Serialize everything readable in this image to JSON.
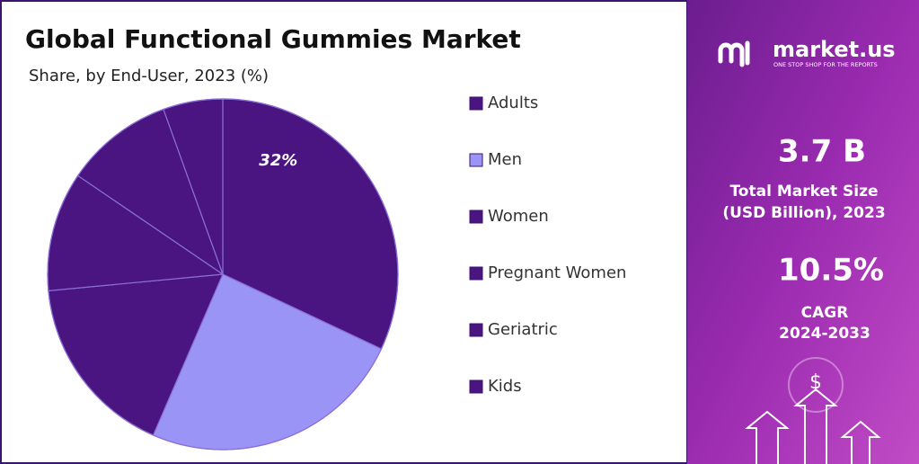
{
  "chart_data": {
    "type": "pie",
    "title": "Global Functional Gummies Market",
    "subtitle": "Share, by End-User, 2023 (%)",
    "categories": [
      "Adults",
      "Men",
      "Women",
      "Pregnant Women",
      "Geriatric",
      "Kids"
    ],
    "values": [
      32,
      24.5,
      17,
      11,
      10,
      5.5
    ],
    "value_labels": [
      "32%",
      null,
      null,
      null,
      null,
      null
    ],
    "colors": [
      "#4a1580",
      "#9b94f7",
      "#4a1580",
      "#4a1580",
      "#4a1580",
      "#4a1580"
    ]
  },
  "panel": {
    "brand": "market.us",
    "tagline": "ONE STOP SHOP FOR THE REPORTS",
    "market_size": "3.7 B",
    "market_size_label_1": "Total Market Size",
    "market_size_label_2": "(USD Billion), 2023",
    "cagr": "10.5%",
    "cagr_label": "CAGR",
    "cagr_period": "2024-2033",
    "icon": "$"
  }
}
